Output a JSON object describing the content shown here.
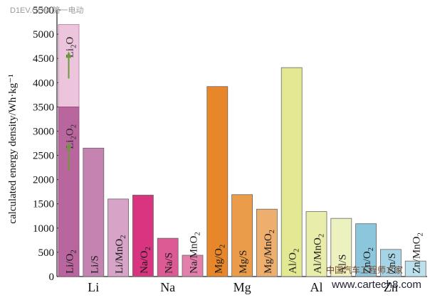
{
  "watermark_top": "D1EV.COM 第一电动",
  "watermark_bottom": "www.cartech8.com",
  "watermark_bottom_cn": "中国汽车工程师之家",
  "chart_data": {
    "type": "bar",
    "title": "",
    "xlabel": "",
    "ylabel": "calculated energy density/Wh·kg⁻¹",
    "ylim": [
      0,
      5500
    ],
    "yticks": [
      0,
      500,
      1000,
      1500,
      2000,
      2500,
      3000,
      3500,
      4000,
      4500,
      5000,
      5500
    ],
    "groups": [
      {
        "name": "Li",
        "bars": [
          {
            "label": "Li/O2",
            "value": 3500,
            "stacked_top": 5200,
            "top_label": "Li2O",
            "color": "#b9669e",
            "top_color": "#ecc4dc"
          },
          {
            "label": "Li/S",
            "value": 2650,
            "color": "#c583b1"
          },
          {
            "label": "Li/MnO2",
            "value": 1600,
            "color": "#d7a4c8"
          }
        ]
      },
      {
        "name": "Na",
        "bars": [
          {
            "label": "Na/O2",
            "value": 1680,
            "color": "#d9347f"
          },
          {
            "label": "Na/S",
            "value": 790,
            "color": "#dc5b94"
          },
          {
            "label": "Na/MnO2",
            "value": 440,
            "color": "#e27fab"
          }
        ]
      },
      {
        "name": "Mg",
        "bars": [
          {
            "label": "Mg/O2",
            "value": 3920,
            "color": "#e8872a"
          },
          {
            "label": "Mg/S",
            "value": 1690,
            "color": "#eb9c4a"
          },
          {
            "label": "Mg/MnO2",
            "value": 1390,
            "color": "#eeaf6e"
          }
        ]
      },
      {
        "name": "Al",
        "bars": [
          {
            "label": "Al/O2",
            "value": 4310,
            "color": "#e3e992"
          },
          {
            "label": "Al/MnO2",
            "value": 1340,
            "color": "#e8edaa"
          },
          {
            "label": "Al/S",
            "value": 1200,
            "color": "#edf1c0"
          }
        ]
      },
      {
        "name": "Zn",
        "bars": [
          {
            "label": "Zn/O2",
            "value": 1090,
            "color": "#8cc6dd"
          },
          {
            "label": "Zn/S",
            "value": 560,
            "color": "#a6d4e6"
          },
          {
            "label": "Zn/MnO2",
            "value": 320,
            "color": "#bde0ed"
          }
        ]
      }
    ],
    "annotations": [
      {
        "label": "Li2O2",
        "target_bar": "Li/O2"
      }
    ],
    "grid": false,
    "legend": "none"
  }
}
